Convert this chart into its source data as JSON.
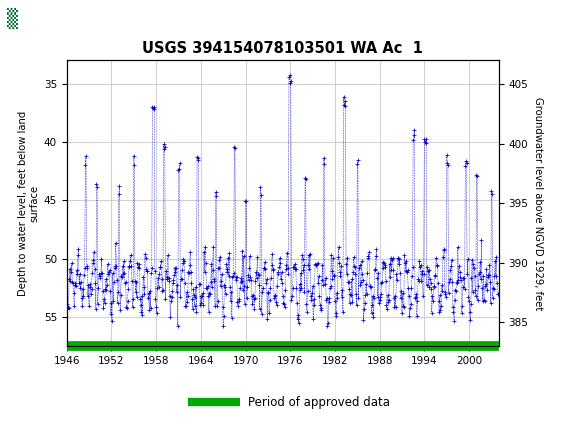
{
  "title": "USGS 394154078103501 WA Ac  1",
  "legend_label": "Period of approved data",
  "ylabel_left": "Depth to water level, feet below land\nsurface",
  "ylabel_right": "Groundwater level above NGVD 1929, feet",
  "xlim": [
    1946,
    2004
  ],
  "ylim_left": [
    57.5,
    33.0
  ],
  "ylim_right": [
    383.0,
    407.0
  ],
  "xticks": [
    1946,
    1952,
    1958,
    1964,
    1970,
    1976,
    1982,
    1988,
    1994,
    2000
  ],
  "yticks_left": [
    35,
    40,
    45,
    50,
    55
  ],
  "yticks_right": [
    405,
    400,
    395,
    390,
    385
  ],
  "data_color": "#0000cc",
  "legend_color": "#00aa00",
  "header_bg": "#006633",
  "plot_bg": "#ffffff",
  "grid_color": "#c8c8c8",
  "seed": 42
}
